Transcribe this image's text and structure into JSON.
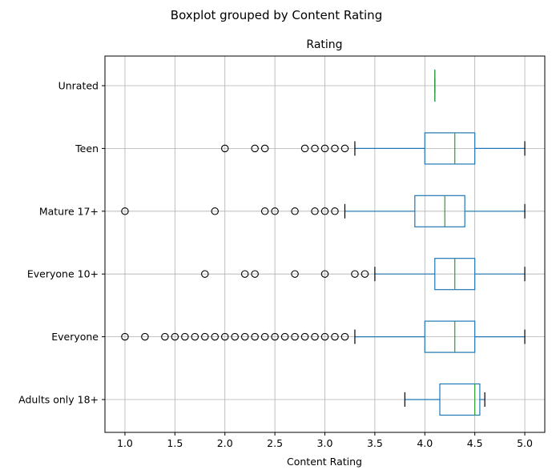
{
  "chart_data": {
    "type": "boxplot",
    "orientation": "horizontal",
    "suptitle": "Boxplot grouped by Content Rating",
    "title": "Rating",
    "xlabel": "Content Rating",
    "ylabel": "",
    "xlim": [
      0.8,
      5.2
    ],
    "xticks": [
      "1.0",
      "1.5",
      "2.0",
      "2.5",
      "3.0",
      "3.5",
      "4.0",
      "4.5",
      "5.0"
    ],
    "grid": true,
    "colors": {
      "box": "#1f77b4",
      "median": "#2ca02c",
      "whisker_cap": "#000000",
      "grid": "#b0b0b0"
    },
    "categories": [
      "Adults only 18+",
      "Everyone",
      "Everyone 10+",
      "Mature 17+",
      "Teen",
      "Unrated"
    ],
    "boxes": [
      {
        "category": "Adults only 18+",
        "whislo": 3.8,
        "q1": 4.15,
        "med": 4.5,
        "q3": 4.55,
        "whishi": 4.6,
        "fliers": []
      },
      {
        "category": "Everyone",
        "whislo": 3.3,
        "q1": 4.0,
        "med": 4.3,
        "q3": 4.5,
        "whishi": 5.0,
        "fliers": [
          1.0,
          1.2,
          1.4,
          1.5,
          1.6,
          1.7,
          1.8,
          1.9,
          2.0,
          2.1,
          2.2,
          2.3,
          2.4,
          2.5,
          2.6,
          2.7,
          2.8,
          2.9,
          3.0,
          3.1,
          3.2
        ]
      },
      {
        "category": "Everyone 10+",
        "whislo": 3.5,
        "q1": 4.1,
        "med": 4.3,
        "q3": 4.5,
        "whishi": 5.0,
        "fliers": [
          1.8,
          2.2,
          2.3,
          2.7,
          3.0,
          3.3,
          3.4
        ]
      },
      {
        "category": "Mature 17+",
        "whislo": 3.2,
        "q1": 3.9,
        "med": 4.2,
        "q3": 4.4,
        "whishi": 5.0,
        "fliers": [
          1.0,
          1.9,
          2.4,
          2.5,
          2.7,
          2.9,
          3.0,
          3.1
        ]
      },
      {
        "category": "Teen",
        "whislo": 3.3,
        "q1": 4.0,
        "med": 4.3,
        "q3": 4.5,
        "whishi": 5.0,
        "fliers": [
          2.0,
          2.3,
          2.4,
          2.8,
          2.9,
          3.0,
          3.1,
          3.2
        ]
      },
      {
        "category": "Unrated",
        "whislo": 4.1,
        "q1": 4.1,
        "med": 4.1,
        "q3": 4.1,
        "whishi": 4.1,
        "fliers": []
      }
    ]
  }
}
